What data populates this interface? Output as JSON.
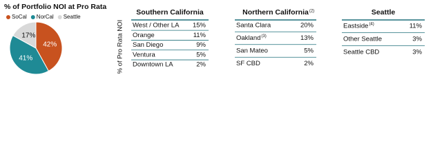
{
  "chart_data": {
    "type": "pie",
    "title": "% of Portfolio NOI at Pro Rata",
    "categories": [
      "SoCal",
      "NorCal",
      "Seattle"
    ],
    "values": [
      42,
      41,
      17
    ],
    "value_labels": [
      "42%",
      "41%",
      "17%"
    ],
    "colors": [
      "#c8521f",
      "#1f8a95",
      "#d9d9d9"
    ],
    "legend": "top"
  },
  "axis_label": "% of Pro Rata NOI",
  "tables": [
    {
      "title": "Southern California",
      "rows": [
        [
          "West / Other LA",
          "15%"
        ],
        [
          "Orange",
          "11%"
        ],
        [
          "San Diego",
          "9%"
        ],
        [
          "Ventura",
          "5%"
        ],
        [
          "Downtown LA",
          "2%"
        ]
      ]
    },
    {
      "title": "Northern California",
      "title_note": "(2)",
      "rows": [
        [
          "Santa Clara",
          "20%"
        ],
        [
          "Oakland",
          "13%",
          "(3)"
        ],
        [
          "San Mateo",
          "5%"
        ],
        [
          "SF CBD",
          "2%"
        ]
      ]
    },
    {
      "title": "Seattle",
      "rows": [
        [
          "Eastside",
          "11%",
          "(4)"
        ],
        [
          "Other Seattle",
          "3%"
        ],
        [
          "Seattle CBD",
          "3%"
        ]
      ]
    }
  ]
}
